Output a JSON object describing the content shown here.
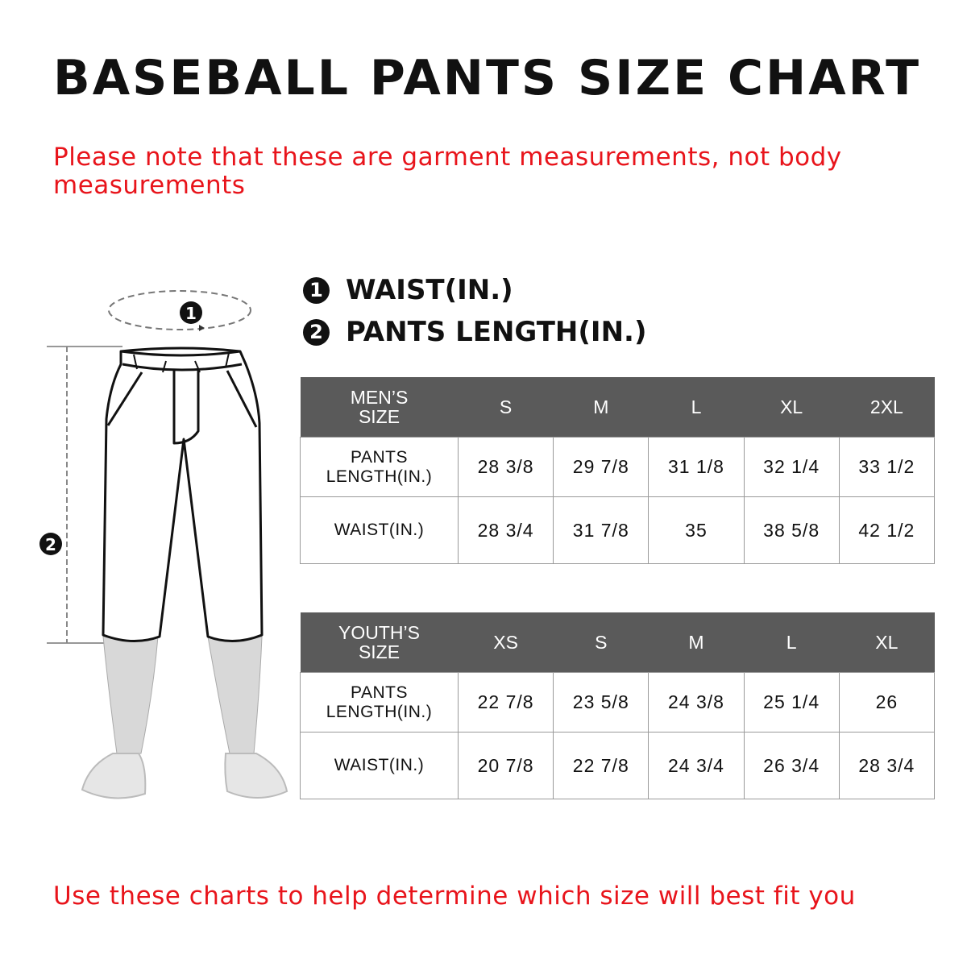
{
  "title": "BASEBALL PANTS SIZE CHART",
  "note": "Please note that these are garment measurements, not body measurements",
  "legend": [
    {
      "marker": "1",
      "label": "WAIST(IN.)"
    },
    {
      "marker": "2",
      "label": "PANTS LENGTH(IN.)"
    }
  ],
  "figure": {
    "waist_marker": "1",
    "length_marker": "2"
  },
  "men_table": {
    "header": [
      "MEN’S SIZE",
      "S",
      "M",
      "L",
      "XL",
      "2XL"
    ],
    "rows": [
      [
        "PANTS LENGTH(IN.)",
        "28 3/8",
        "29 7/8",
        "31 1/8",
        "32 1/4",
        "33 1/2"
      ],
      [
        "WAIST(IN.)",
        "28 3/4",
        "31 7/8",
        "35",
        "38 5/8",
        "42 1/2"
      ]
    ]
  },
  "youth_table": {
    "header": [
      "YOUTH’S SIZE",
      "XS",
      "S",
      "M",
      "L",
      "XL"
    ],
    "rows": [
      [
        "PANTS LENGTH(IN.)",
        "22 7/8",
        "23 5/8",
        "24 3/8",
        "25 1/4",
        "26"
      ],
      [
        "WAIST(IN.)",
        "20 7/8",
        "22 7/8",
        "24 3/4",
        "26 3/4",
        "28 3/4"
      ]
    ]
  },
  "footer": "Use these charts to help determine which size will best fit you",
  "colors": {
    "accent_red": "#e8141b",
    "table_header": "#5a5a5a",
    "table_border": "#9a9a9a"
  }
}
